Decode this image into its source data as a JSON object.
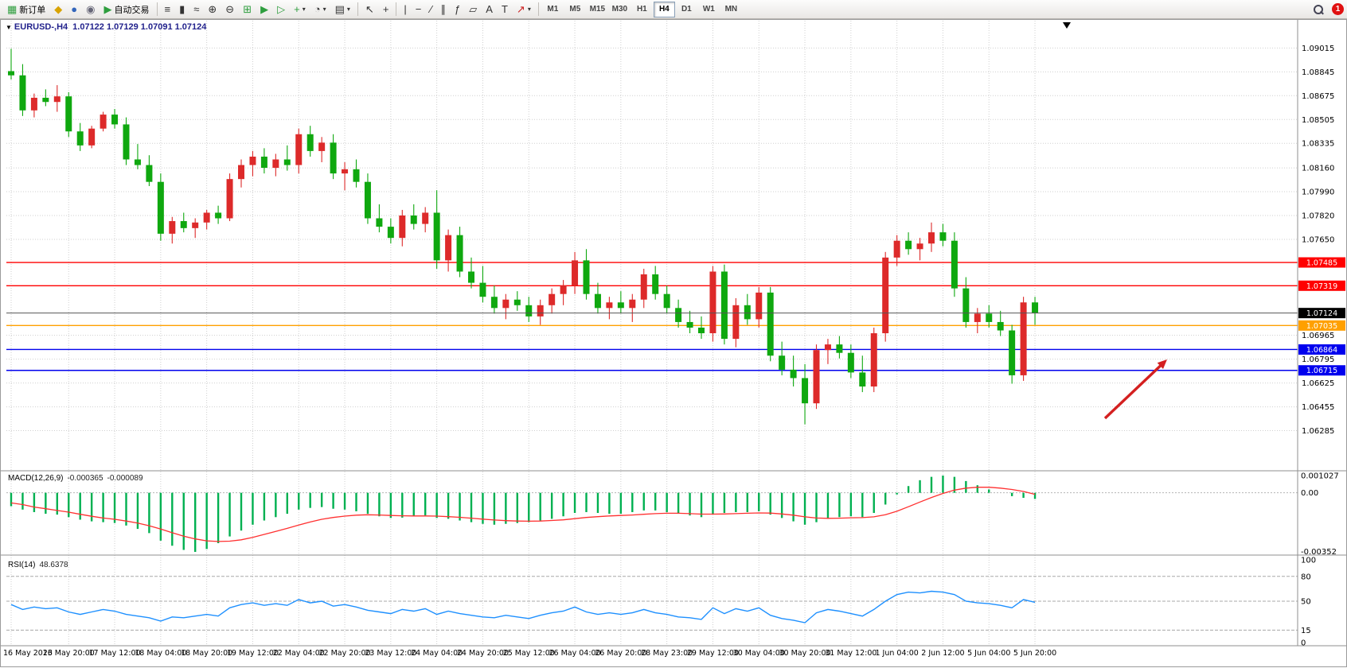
{
  "toolbar": {
    "new_order_label": "新订单",
    "auto_trading_label": "自动交易",
    "timeframes": [
      "M1",
      "M5",
      "M15",
      "M30",
      "H1",
      "H4",
      "D1",
      "W1",
      "MN"
    ],
    "active_timeframe": "H4",
    "notification_count": "1"
  },
  "icons": {
    "new_order": "▦",
    "sound": "◆",
    "profile": "●",
    "news": "◉",
    "auto_trading": "▶",
    "bar_chart": "≡",
    "candle_chart": "▮",
    "line_chart": "≈",
    "zoom_in": "⊕",
    "zoom_out": "⊖",
    "tile": "⊞",
    "autoscroll": "▶",
    "shift": "▷",
    "indicators": "+",
    "periods": "◔",
    "templates": "▤",
    "dropdown": "▾",
    "cursor": "↖",
    "crosshair": "+",
    "vline": "|",
    "hline": "−",
    "trendline": "∕",
    "channel": "∥",
    "fibo": "ƒ",
    "shapes": "▱",
    "text": "A",
    "label": "T",
    "arrows": "↗",
    "collapse": "▼"
  },
  "chart_data": {
    "type": "candlestick",
    "title": "EURUSD-,H4",
    "quote_text": "1.07122 1.07129 1.07091 1.07124",
    "quote": {
      "open": "1.07122",
      "high": "1.07129",
      "low": "1.07091",
      "close": "1.07124"
    },
    "colors": {
      "up": "#DD2A2A",
      "down": "#0FA80F",
      "grid": "#CFCFCF",
      "axis_text": "#000000"
    },
    "price_axis": {
      "min": 1.0601,
      "max": 1.0921,
      "ticks": [
        {
          "p": 1.09015,
          "label": "1.09015"
        },
        {
          "p": 1.08845,
          "label": "1.08845"
        },
        {
          "p": 1.08675,
          "label": "1.08675"
        },
        {
          "p": 1.08505,
          "label": "1.08505"
        },
        {
          "p": 1.08335,
          "label": "1.08335"
        },
        {
          "p": 1.0816,
          "label": "1.08160"
        },
        {
          "p": 1.0799,
          "label": "1.07990"
        },
        {
          "p": 1.0782,
          "label": "1.07820"
        },
        {
          "p": 1.0765,
          "label": "1.07650"
        },
        {
          "p": 1.06965,
          "label": "1.06965"
        },
        {
          "p": 1.06795,
          "label": "1.06795"
        },
        {
          "p": 1.06625,
          "label": "1.06625"
        },
        {
          "p": 1.06455,
          "label": "1.06455"
        },
        {
          "p": 1.06285,
          "label": "1.06285"
        }
      ]
    },
    "levels": [
      {
        "price": 1.07485,
        "color": "#FF0000",
        "label": "1.07485"
      },
      {
        "price": 1.07319,
        "color": "#FF0000",
        "label": "1.07319"
      },
      {
        "price": 1.07035,
        "color": "#FFA000",
        "label": "1.07035"
      },
      {
        "price": 1.06864,
        "color": "#0000EE",
        "label": "1.06864"
      },
      {
        "price": 1.06715,
        "color": "#0000EE",
        "label": "1.06715"
      }
    ],
    "current_price": {
      "price": 1.07124,
      "label": "1.07124",
      "color": "#000000"
    },
    "shift_marker_x": 1340,
    "candles": [
      [
        1.0885,
        1.0901,
        1.0879,
        1.0882
      ],
      [
        1.0882,
        1.089,
        1.0853,
        1.0857
      ],
      [
        1.0857,
        1.0869,
        1.0852,
        1.0866
      ],
      [
        1.0866,
        1.0872,
        1.086,
        1.0863
      ],
      [
        1.0863,
        1.0875,
        1.0856,
        1.0867
      ],
      [
        1.0867,
        1.087,
        1.0838,
        1.0842
      ],
      [
        1.0842,
        1.0848,
        1.0828,
        1.0832
      ],
      [
        1.0832,
        1.0846,
        1.083,
        1.0844
      ],
      [
        1.0844,
        1.0856,
        1.0842,
        1.0854
      ],
      [
        1.0854,
        1.0858,
        1.0844,
        1.0847
      ],
      [
        1.0847,
        1.0852,
        1.0818,
        1.0822
      ],
      [
        1.0822,
        1.0833,
        1.0815,
        1.0818
      ],
      [
        1.0818,
        1.0825,
        1.0803,
        1.0806
      ],
      [
        1.0806,
        1.0812,
        1.0764,
        1.0769
      ],
      [
        1.0769,
        1.0781,
        1.0762,
        1.0778
      ],
      [
        1.0778,
        1.0784,
        1.077,
        1.0773
      ],
      [
        1.0773,
        1.078,
        1.0766,
        1.0777
      ],
      [
        1.0777,
        1.0786,
        1.0772,
        1.0784
      ],
      [
        1.0784,
        1.0789,
        1.0776,
        1.078
      ],
      [
        1.078,
        1.0812,
        1.0778,
        1.0808
      ],
      [
        1.0808,
        1.0822,
        1.0802,
        1.0818
      ],
      [
        1.0818,
        1.0828,
        1.081,
        1.0824
      ],
      [
        1.0824,
        1.083,
        1.0812,
        1.0816
      ],
      [
        1.0816,
        1.0826,
        1.081,
        1.0822
      ],
      [
        1.0822,
        1.0832,
        1.0814,
        1.0818
      ],
      [
        1.0818,
        1.0844,
        1.0812,
        1.084
      ],
      [
        1.084,
        1.0846,
        1.0824,
        1.0828
      ],
      [
        1.0828,
        1.0838,
        1.082,
        1.0834
      ],
      [
        1.0834,
        1.084,
        1.0808,
        1.0812
      ],
      [
        1.0812,
        1.082,
        1.08,
        1.0815
      ],
      [
        1.0815,
        1.0822,
        1.0802,
        1.0806
      ],
      [
        1.0806,
        1.0812,
        1.0776,
        1.078
      ],
      [
        1.078,
        1.079,
        1.077,
        1.0774
      ],
      [
        1.0774,
        1.078,
        1.0762,
        1.0766
      ],
      [
        1.0766,
        1.0786,
        1.076,
        1.0782
      ],
      [
        1.0782,
        1.079,
        1.0772,
        1.0776
      ],
      [
        1.0776,
        1.0788,
        1.077,
        1.0784
      ],
      [
        1.0784,
        1.08,
        1.0744,
        1.075
      ],
      [
        1.075,
        1.0772,
        1.0742,
        1.0768
      ],
      [
        1.0768,
        1.0774,
        1.0738,
        1.0742
      ],
      [
        1.0742,
        1.0752,
        1.073,
        1.0734
      ],
      [
        1.0734,
        1.0746,
        1.072,
        1.0724
      ],
      [
        1.0724,
        1.0732,
        1.0712,
        1.0716
      ],
      [
        1.0716,
        1.0726,
        1.0708,
        1.0722
      ],
      [
        1.0722,
        1.0728,
        1.0714,
        1.0718
      ],
      [
        1.0718,
        1.0724,
        1.0706,
        1.071
      ],
      [
        1.071,
        1.0722,
        1.0704,
        1.0718
      ],
      [
        1.0718,
        1.073,
        1.0712,
        1.0726
      ],
      [
        1.0726,
        1.0736,
        1.0718,
        1.0732
      ],
      [
        1.0732,
        1.0756,
        1.0726,
        1.075
      ],
      [
        1.075,
        1.0758,
        1.0722,
        1.0726
      ],
      [
        1.0726,
        1.0734,
        1.0712,
        1.0716
      ],
      [
        1.0716,
        1.0724,
        1.0708,
        1.072
      ],
      [
        1.072,
        1.0728,
        1.0712,
        1.0716
      ],
      [
        1.0716,
        1.0726,
        1.0706,
        1.0722
      ],
      [
        1.0722,
        1.0744,
        1.0716,
        1.074
      ],
      [
        1.074,
        1.0746,
        1.0722,
        1.0726
      ],
      [
        1.0726,
        1.0732,
        1.0712,
        1.0716
      ],
      [
        1.0716,
        1.0722,
        1.0702,
        1.0706
      ],
      [
        1.0706,
        1.0714,
        1.0698,
        1.0702
      ],
      [
        1.0702,
        1.071,
        1.0694,
        1.0698
      ],
      [
        1.0698,
        1.0746,
        1.0692,
        1.0742
      ],
      [
        1.0742,
        1.0747,
        1.069,
        1.0694
      ],
      [
        1.0694,
        1.0723,
        1.0688,
        1.0718
      ],
      [
        1.0718,
        1.0726,
        1.0704,
        1.0708
      ],
      [
        1.0708,
        1.0731,
        1.0702,
        1.0727
      ],
      [
        1.0727,
        1.0731,
        1.0678,
        1.0682
      ],
      [
        1.0682,
        1.0692,
        1.0668,
        1.0672
      ],
      [
        1.0672,
        1.0682,
        1.066,
        1.0666
      ],
      [
        1.0666,
        1.0676,
        1.0633,
        1.0648
      ],
      [
        1.0648,
        1.069,
        1.0644,
        1.0686
      ],
      [
        1.0686,
        1.0694,
        1.0676,
        1.069
      ],
      [
        1.069,
        1.0696,
        1.068,
        1.0684
      ],
      [
        1.0684,
        1.069,
        1.0666,
        1.067
      ],
      [
        1.067,
        1.0682,
        1.0656,
        1.066
      ],
      [
        1.066,
        1.0702,
        1.0656,
        1.0698
      ],
      [
        1.0698,
        1.0756,
        1.0692,
        1.0752
      ],
      [
        1.0752,
        1.0768,
        1.0746,
        1.0764
      ],
      [
        1.0764,
        1.077,
        1.0754,
        1.0758
      ],
      [
        1.0758,
        1.0766,
        1.075,
        1.0762
      ],
      [
        1.0762,
        1.0777,
        1.0756,
        1.077
      ],
      [
        1.077,
        1.0776,
        1.076,
        1.0764
      ],
      [
        1.0764,
        1.077,
        1.0724,
        1.073
      ],
      [
        1.073,
        1.0738,
        1.0702,
        1.0706
      ],
      [
        1.0706,
        1.0716,
        1.0698,
        1.0712
      ],
      [
        1.0712,
        1.0718,
        1.0702,
        1.0706
      ],
      [
        1.0706,
        1.0714,
        1.0696,
        1.07
      ],
      [
        1.07,
        1.0704,
        1.0662,
        1.0668
      ],
      [
        1.0668,
        1.0724,
        1.0664,
        1.072
      ],
      [
        1.072,
        1.0724,
        1.0704,
        1.07124
      ]
    ],
    "time_labels": [
      {
        "label": "16 May 2023",
        "bar": 0
      },
      {
        "label": "16 May 20:00",
        "bar": 5
      },
      {
        "label": "17 May 12:00",
        "bar": 9
      },
      {
        "label": "18 May 04:00",
        "bar": 13
      },
      {
        "label": "18 May 20:00",
        "bar": 17
      },
      {
        "label": "19 May 12:00",
        "bar": 21
      },
      {
        "label": "22 May 04:00",
        "bar": 25
      },
      {
        "label": "22 May 20:00",
        "bar": 29
      },
      {
        "label": "23 May 12:00",
        "bar": 33
      },
      {
        "label": "24 May 04:00",
        "bar": 37
      },
      {
        "label": "24 May 20:00",
        "bar": 41
      },
      {
        "label": "25 May 12:00",
        "bar": 45
      },
      {
        "label": "26 May 04:00",
        "bar": 49
      },
      {
        "label": "26 May 20:00",
        "bar": 53
      },
      {
        "label": "28 May 23:00",
        "bar": 57
      },
      {
        "label": "29 May 12:00",
        "bar": 61
      },
      {
        "label": "30 May 04:00",
        "bar": 65
      },
      {
        "label": "30 May 20:00",
        "bar": 69
      },
      {
        "label": "31 May 12:00",
        "bar": 73
      },
      {
        "label": "1 Jun 04:00",
        "bar": 77
      },
      {
        "label": "2 Jun 12:00",
        "bar": 81
      },
      {
        "label": "5 Jun 04:00",
        "bar": 85
      },
      {
        "label": "5 Jun 20:00",
        "bar": 89
      }
    ],
    "indicators": {
      "macd": {
        "label": "MACD(12,26,9)",
        "value_main": "-0.000365",
        "value_signal": "-0.000089",
        "range": [
          -0.00352,
          0.001027
        ],
        "axis": [
          {
            "v": 0.001027,
            "label": "0.001027"
          },
          {
            "v": 0,
            "label": "0.00"
          },
          {
            "v": -0.00352,
            "label": "-0.00352"
          }
        ],
        "colors": {
          "histogram": "#00B050",
          "signal": "#FF3030"
        },
        "histogram": [
          -0.0008,
          -0.001,
          -0.00115,
          -0.00125,
          -0.0013,
          -0.00145,
          -0.0016,
          -0.0017,
          -0.00175,
          -0.0018,
          -0.00195,
          -0.00215,
          -0.0024,
          -0.00285,
          -0.00315,
          -0.0034,
          -0.00352,
          -0.00335,
          -0.003,
          -0.0026,
          -0.00225,
          -0.0019,
          -0.00165,
          -0.00145,
          -0.00125,
          -0.001,
          -0.0009,
          -0.00085,
          -0.00095,
          -0.001,
          -0.0011,
          -0.00125,
          -0.0014,
          -0.0015,
          -0.00148,
          -0.0014,
          -0.00135,
          -0.0015,
          -0.00155,
          -0.00165,
          -0.00175,
          -0.00185,
          -0.0019,
          -0.00185,
          -0.0018,
          -0.00175,
          -0.00165,
          -0.00155,
          -0.0014,
          -0.0012,
          -0.00115,
          -0.0012,
          -0.00125,
          -0.00125,
          -0.00115,
          -0.00105,
          -0.00105,
          -0.00115,
          -0.00125,
          -0.00135,
          -0.00145,
          -0.00125,
          -0.0012,
          -0.00115,
          -0.00115,
          -0.0011,
          -0.0013,
          -0.0015,
          -0.0017,
          -0.0019,
          -0.00175,
          -0.00155,
          -0.00145,
          -0.0014,
          -0.00145,
          -0.0012,
          -0.0007,
          -0.0001,
          0.0004,
          0.00075,
          0.00095,
          0.001027,
          0.00095,
          0.0007,
          0.00045,
          0.0002,
          0.0,
          -0.0002,
          -0.0003,
          -0.000365
        ],
        "signal": [
          -0.0006,
          -0.0007,
          -0.00085,
          -0.00095,
          -0.00105,
          -0.00115,
          -0.00128,
          -0.0014,
          -0.0015,
          -0.00158,
          -0.00168,
          -0.0018,
          -0.00196,
          -0.00216,
          -0.00238,
          -0.00258,
          -0.00275,
          -0.00286,
          -0.0029,
          -0.00288,
          -0.0028,
          -0.00266,
          -0.00248,
          -0.0023,
          -0.00212,
          -0.00192,
          -0.00174,
          -0.00158,
          -0.00147,
          -0.00139,
          -0.00133,
          -0.00131,
          -0.00132,
          -0.00135,
          -0.00137,
          -0.00138,
          -0.00138,
          -0.00139,
          -0.00142,
          -0.00146,
          -0.00151,
          -0.00157,
          -0.00162,
          -0.00166,
          -0.00168,
          -0.00169,
          -0.00168,
          -0.00165,
          -0.00161,
          -0.00154,
          -0.00147,
          -0.00142,
          -0.00138,
          -0.00135,
          -0.00132,
          -0.00128,
          -0.00124,
          -0.00122,
          -0.00122,
          -0.00124,
          -0.00127,
          -0.00127,
          -0.00126,
          -0.00124,
          -0.00122,
          -0.0012,
          -0.00121,
          -0.00126,
          -0.00133,
          -0.00143,
          -0.0015,
          -0.00152,
          -0.00151,
          -0.00149,
          -0.00148,
          -0.00143,
          -0.00131,
          -0.0011,
          -0.00083,
          -0.00055,
          -0.00028,
          -4e-05,
          0.00016,
          0.00028,
          0.00033,
          0.00033,
          0.00028,
          0.0002,
          8e-05,
          -8.9e-05
        ]
      },
      "rsi": {
        "label": "RSI(14)",
        "value": "48.6378",
        "color": "#1E90FF",
        "axis": [
          {
            "v": 100,
            "label": "100"
          },
          {
            "v": 80,
            "label": "80"
          },
          {
            "v": 50,
            "label": "50"
          },
          {
            "v": 15,
            "label": "15"
          },
          {
            "v": 0,
            "label": "0"
          }
        ],
        "dashed_levels": [
          80,
          50,
          15
        ],
        "series": [
          46,
          40,
          43,
          41,
          42,
          37,
          34,
          37,
          40,
          38,
          34,
          32,
          30,
          26,
          31,
          30,
          32,
          34,
          32,
          42,
          46,
          48,
          45,
          47,
          45,
          52,
          48,
          50,
          44,
          46,
          43,
          39,
          37,
          35,
          40,
          38,
          41,
          34,
          38,
          35,
          33,
          31,
          30,
          33,
          31,
          29,
          33,
          36,
          38,
          43,
          37,
          34,
          36,
          34,
          36,
          40,
          36,
          34,
          31,
          30,
          28,
          42,
          35,
          41,
          38,
          42,
          33,
          29,
          27,
          24,
          36,
          40,
          38,
          35,
          32,
          40,
          50,
          58,
          61,
          60,
          62,
          61,
          58,
          50,
          48,
          47,
          45,
          42,
          52,
          48.6378
        ]
      }
    },
    "annotations": [
      {
        "type": "arrow",
        "color": "#D42020",
        "tail": [
          1388,
          502
        ],
        "tip": [
          1466,
          428
        ]
      }
    ]
  }
}
